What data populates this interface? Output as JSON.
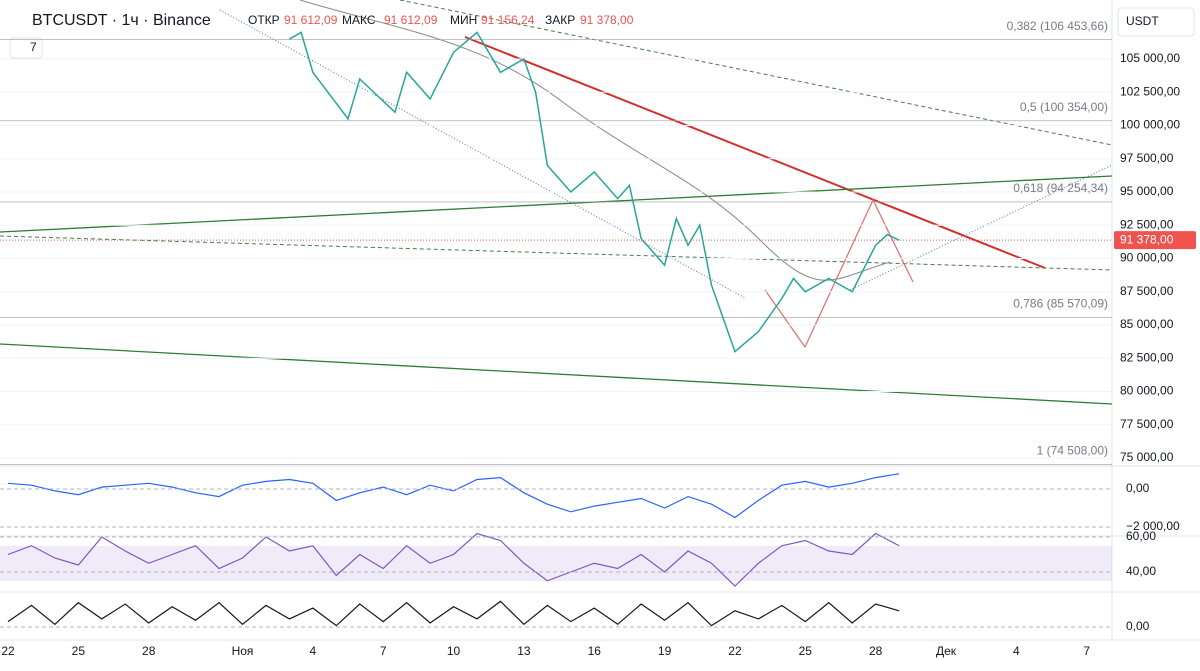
{
  "header": {
    "symbol": "BTCUSDT · 1ч · Binance",
    "open_label": "ОТКР",
    "open": "91 612,09",
    "high_label": "МАКС",
    "high": "91 612,09",
    "low_label": "МИН",
    "low": "91 156,24",
    "close_label": "ЗАКР",
    "close": "91 378,00",
    "indicators_count": "7"
  },
  "currency": "USDT",
  "price_axis": {
    "ticks": [
      {
        "value": 105000,
        "label": "105 000,00"
      },
      {
        "value": 102500,
        "label": "102 500,00"
      },
      {
        "value": 100000,
        "label": "100 000,00"
      },
      {
        "value": 97500,
        "label": "97 500,00"
      },
      {
        "value": 95000,
        "label": "95 000,00"
      },
      {
        "value": 92500,
        "label": "92 500,00"
      },
      {
        "value": 90000,
        "label": "90 000,00"
      },
      {
        "value": 87500,
        "label": "87 500,00"
      },
      {
        "value": 85000,
        "label": "85 000,00"
      },
      {
        "value": 82500,
        "label": "82 500,00"
      },
      {
        "value": 80000,
        "label": "80 000,00"
      },
      {
        "value": 77500,
        "label": "77 500,00"
      },
      {
        "value": 75000,
        "label": "75 000,00"
      }
    ],
    "last_price": {
      "value": 91378,
      "label": "91 378,00"
    }
  },
  "fib_levels": [
    {
      "value": 106453.66,
      "label": "0,382 (106 453,66)"
    },
    {
      "value": 100354,
      "label": "0,5 (100 354,00)"
    },
    {
      "value": 94254.34,
      "label": "0,618 (94 254,34)"
    },
    {
      "value": 85570.09,
      "label": "0,786 (85 570,09)"
    },
    {
      "value": 74508,
      "label": "1 (74 508,00)"
    }
  ],
  "price_line": {
    "x": [
      12,
      12.5,
      13,
      14.5,
      15,
      16.5,
      17,
      18,
      19,
      20,
      21,
      22,
      22.5,
      23,
      24,
      25,
      26,
      26.5,
      27,
      28,
      28.5,
      29,
      29.5,
      30,
      30.5,
      31,
      32,
      33,
      33.5,
      34,
      35,
      36,
      37,
      37.5,
      38
    ],
    "values": [
      106500,
      107000,
      104000,
      100500,
      103500,
      101000,
      104000,
      102000,
      105500,
      107000,
      104000,
      105000,
      102500,
      97000,
      95000,
      96500,
      94500,
      95500,
      91500,
      89500,
      93000,
      91000,
      92500,
      88000,
      85500,
      83000,
      84500,
      87000,
      88500,
      87500,
      88500,
      87500,
      91000,
      91800,
      91378
    ]
  },
  "macd": {
    "values": [
      300,
      200,
      -100,
      -300,
      100,
      200,
      300,
      100,
      -200,
      -400,
      200,
      400,
      500,
      300,
      -600,
      -200,
      100,
      -300,
      200,
      -100,
      500,
      600,
      -200,
      -800,
      -1200,
      -900,
      -700,
      -500,
      -1000,
      -400,
      -800,
      -1500,
      -600,
      200,
      400,
      100,
      300,
      600,
      800
    ],
    "ticks": [
      {
        "value": 0,
        "label": "0,00"
      },
      {
        "value": -2000,
        "label": "−2 000,00"
      }
    ]
  },
  "rsi": {
    "values": [
      50,
      55,
      48,
      44,
      60,
      52,
      45,
      50,
      55,
      42,
      48,
      60,
      52,
      55,
      38,
      50,
      42,
      55,
      45,
      50,
      62,
      58,
      45,
      35,
      40,
      45,
      42,
      50,
      40,
      52,
      45,
      32,
      45,
      55,
      58,
      52,
      50,
      62,
      55
    ],
    "ticks": [
      {
        "value": 60,
        "label": "60,00"
      },
      {
        "value": 40,
        "label": "40,00"
      }
    ]
  },
  "stoch": {
    "values": [
      20,
      80,
      10,
      90,
      30,
      85,
      15,
      75,
      25,
      90,
      10,
      80,
      30,
      70,
      5,
      85,
      20,
      90,
      15,
      75,
      30,
      95,
      10,
      80,
      20,
      70,
      10,
      85,
      25,
      90,
      5,
      60,
      30,
      80,
      20,
      90,
      15,
      85,
      60
    ],
    "ticks": [
      {
        "value": 0,
        "label": "0,00"
      }
    ]
  },
  "date_axis": [
    "22",
    "25",
    "28",
    "Ноя",
    "4",
    "7",
    "10",
    "13",
    "16",
    "19",
    "22",
    "25",
    "28",
    "Дек",
    "4",
    "7"
  ]
}
